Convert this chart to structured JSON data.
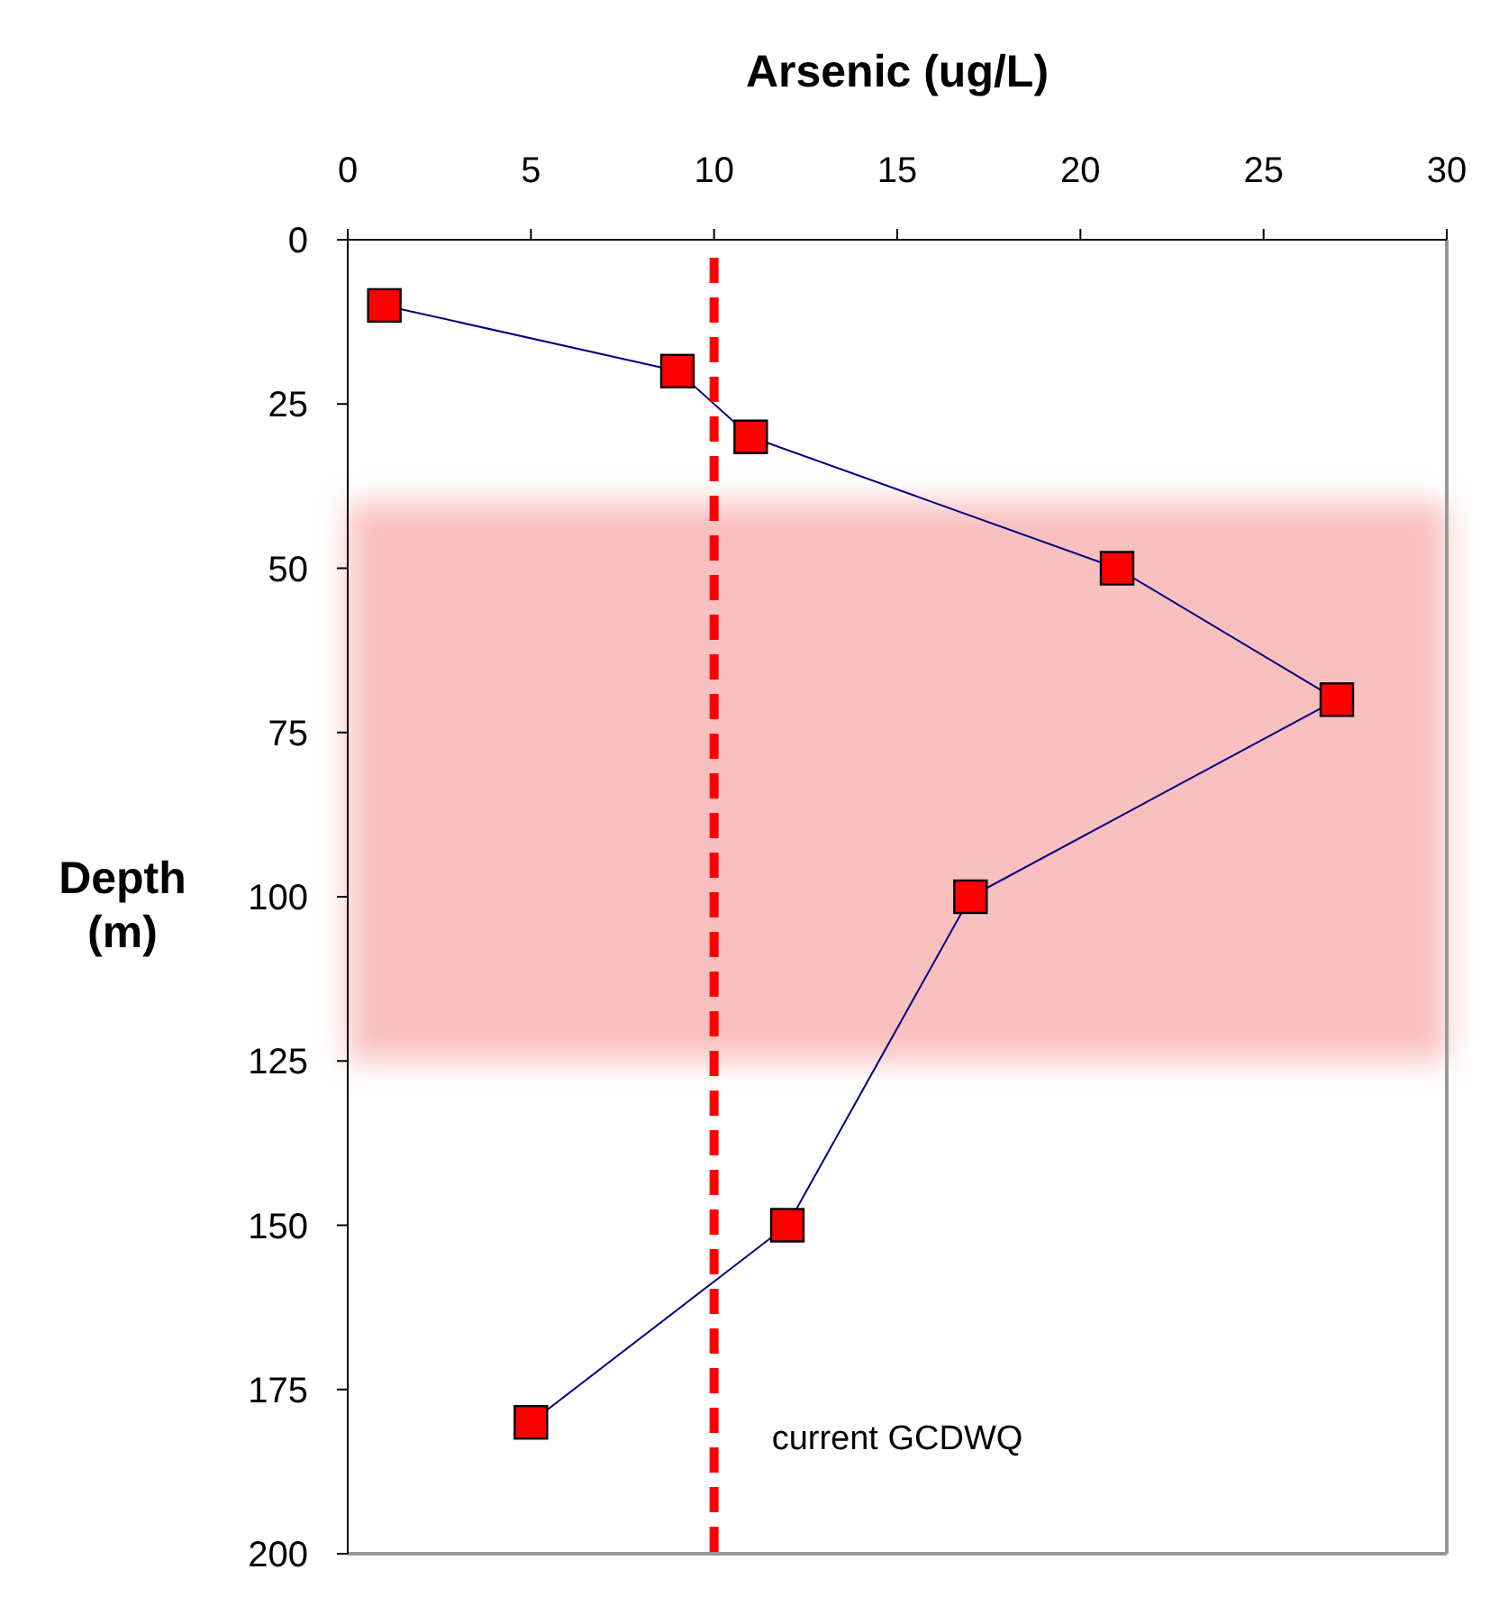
{
  "chart_data": {
    "type": "line",
    "xlabel": "Arsenic (ug/L)",
    "ylabel": "Depth (m)",
    "x": [
      1,
      9,
      11,
      21,
      27,
      17,
      12,
      5
    ],
    "series": [
      {
        "color": "#000080",
        "values": [
          10,
          20,
          30,
          50,
          70,
          100,
          150,
          180
        ]
      }
    ],
    "xlim": [
      0,
      30
    ],
    "xticks": [
      0,
      5,
      10,
      15,
      20,
      25,
      30
    ],
    "ylim": [
      200,
      0
    ],
    "yticks": [
      0,
      25,
      50,
      75,
      100,
      125,
      150,
      175,
      200
    ],
    "marker": "square",
    "line_style": "solid",
    "grid": false,
    "ref_lines": [
      {
        "axis": "x",
        "value": 10,
        "label": "current GCDWQ",
        "color": "#ff0000",
        "line_style": "dashed"
      }
    ],
    "bands": [
      {
        "axis": "y",
        "from": 40,
        "to": 125,
        "color": "#f9c0c0"
      }
    ]
  }
}
